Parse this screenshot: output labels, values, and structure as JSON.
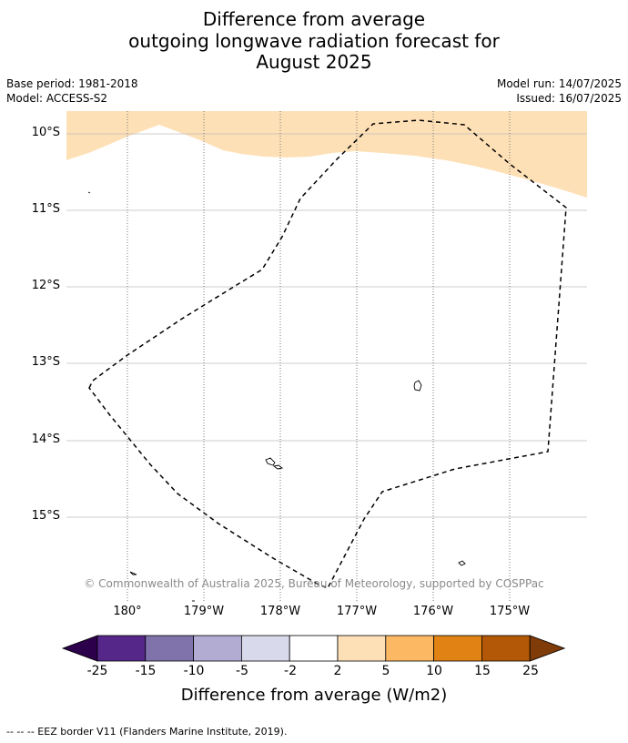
{
  "title": {
    "line1": "Difference from average",
    "line2": "outgoing longwave radiation forecast for",
    "line3": "August 2025"
  },
  "meta": {
    "base_period": "Base period: 1981-2018",
    "model": "Model: ACCESS-S2",
    "model_run": "Model run: 14/07/2025",
    "issued": "Issued: 16/07/2025"
  },
  "map": {
    "lat_labels": [
      "10°S",
      "11°S",
      "12°S",
      "13°S",
      "14°S",
      "15°S"
    ],
    "lon_labels": [
      "180°",
      "179°W",
      "178°W",
      "177°W",
      "176°W",
      "175°W"
    ],
    "anomaly_fill_color": "#fee0b6",
    "eez_line_color": "#000000",
    "copyright": "© Commonwealth of Australia 2025, Bureau of Meteorology, supported by COSPPac"
  },
  "colorbar": {
    "colors": [
      "#2d004b",
      "#542788",
      "#8073ac",
      "#b2abd2",
      "#d8daeb",
      "#ffffff",
      "#fee0b6",
      "#fdb863",
      "#e08214",
      "#b35806",
      "#7f3b08"
    ],
    "tick_labels": [
      "-25",
      "-15",
      "-10",
      "-5",
      "-2",
      "2",
      "5",
      "10",
      "15",
      "25"
    ],
    "title": "Difference from average (W/m2)"
  },
  "footer": {
    "legend_text": "--  --  -- EEZ border V11 (Flanders Marine Institute, 2019)."
  }
}
